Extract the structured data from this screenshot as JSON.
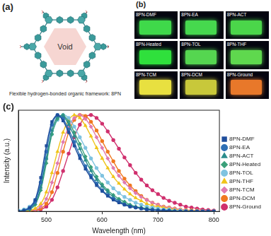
{
  "panel_labels": [
    "(a)",
    "(b)",
    "(c)"
  ],
  "diagram": {
    "center_label": "Void",
    "caption": "Flexible hydrogen-bonded organic framework: 8PN"
  },
  "photos": [
    {
      "label": "8PN-DMF",
      "color": "#3fd94a"
    },
    {
      "label": "8PN-EA",
      "color": "#46d84e"
    },
    {
      "label": "8PN-ACT",
      "color": "#4bd64a"
    },
    {
      "label": "8PN-Heated",
      "color": "#2fe03c"
    },
    {
      "label": "8PN-TOL",
      "color": "#55d650"
    },
    {
      "label": "8PN-THF",
      "color": "#5fd84e"
    },
    {
      "label": "8PN-TCM",
      "color": "#e8e040"
    },
    {
      "label": "8PN-DCM",
      "color": "#c8c83a"
    },
    {
      "label": "8PN-Ground",
      "color": "#e8782a"
    }
  ],
  "chart_data": {
    "type": "line",
    "x_label": "Wavelength (nm)",
    "y_label": "Intensity (a.u.)",
    "x": [
      450,
      460,
      470,
      480,
      490,
      500,
      510,
      520,
      530,
      540,
      550,
      560,
      570,
      580,
      590,
      600,
      610,
      620,
      630,
      640,
      650,
      660,
      670,
      680,
      690,
      700,
      710,
      720,
      730,
      740,
      750,
      760,
      770,
      780,
      790,
      800
    ],
    "xlim": [
      450,
      810
    ],
    "xticks": [
      500,
      600,
      700,
      800
    ],
    "ylim": [
      0,
      1.05
    ],
    "tick_labels": "x",
    "grid": false,
    "legend": "right",
    "series": [
      {
        "name": "8PN-DMF",
        "color": "#1f4e9c",
        "marker": "square",
        "values": [
          0,
          0.01,
          0.04,
          0.12,
          0.35,
          0.68,
          0.93,
          1.0,
          0.94,
          0.82,
          0.68,
          0.55,
          0.44,
          0.35,
          0.27,
          0.21,
          0.16,
          0.12,
          0.09,
          0.07,
          0.05,
          0.04,
          0.03,
          0.02,
          0.015,
          0.01,
          0.01,
          0.005,
          0,
          0,
          0,
          0,
          0,
          0,
          0,
          0
        ]
      },
      {
        "name": "8PN-EA",
        "color": "#2e6fb5",
        "marker": "circle",
        "values": [
          0,
          0.01,
          0.03,
          0.1,
          0.3,
          0.62,
          0.9,
          1.0,
          0.96,
          0.85,
          0.72,
          0.58,
          0.47,
          0.37,
          0.29,
          0.22,
          0.17,
          0.13,
          0.1,
          0.07,
          0.05,
          0.04,
          0.03,
          0.02,
          0.015,
          0.01,
          0.01,
          0.005,
          0,
          0,
          0,
          0,
          0,
          0,
          0,
          0
        ]
      },
      {
        "name": "8PN-ACT",
        "color": "#2a8c8c",
        "marker": "triangle",
        "values": [
          0,
          0.01,
          0.03,
          0.08,
          0.25,
          0.55,
          0.84,
          0.98,
          0.99,
          0.9,
          0.78,
          0.65,
          0.53,
          0.42,
          0.33,
          0.26,
          0.2,
          0.15,
          0.11,
          0.08,
          0.06,
          0.045,
          0.035,
          0.025,
          0.02,
          0.015,
          0.01,
          0.01,
          0.005,
          0,
          0,
          0,
          0,
          0,
          0,
          0
        ]
      },
      {
        "name": "8PN-Heated",
        "color": "#3aa07a",
        "marker": "diamond",
        "values": [
          0,
          0.01,
          0.02,
          0.07,
          0.22,
          0.5,
          0.8,
          0.96,
          1.0,
          0.93,
          0.82,
          0.7,
          0.57,
          0.46,
          0.36,
          0.28,
          0.22,
          0.17,
          0.13,
          0.1,
          0.07,
          0.05,
          0.04,
          0.03,
          0.02,
          0.015,
          0.01,
          0.01,
          0.005,
          0,
          0,
          0,
          0,
          0,
          0,
          0
        ]
      },
      {
        "name": "8PN-TOL",
        "color": "#7fc3e0",
        "marker": "circle",
        "values": [
          0.01,
          0.02,
          0.05,
          0.12,
          0.3,
          0.55,
          0.8,
          0.95,
          1.0,
          0.97,
          0.88,
          0.77,
          0.66,
          0.55,
          0.45,
          0.37,
          0.3,
          0.24,
          0.19,
          0.15,
          0.12,
          0.09,
          0.07,
          0.05,
          0.04,
          0.03,
          0.02,
          0.02,
          0.01,
          0.01,
          0.005,
          0,
          0,
          0,
          0,
          0
        ]
      },
      {
        "name": "8PN-THF",
        "color": "#f0c419",
        "marker": "triangle",
        "values": [
          0,
          0,
          0.01,
          0.03,
          0.08,
          0.2,
          0.4,
          0.62,
          0.82,
          0.95,
          1.0,
          0.97,
          0.89,
          0.78,
          0.66,
          0.55,
          0.45,
          0.36,
          0.29,
          0.23,
          0.18,
          0.14,
          0.11,
          0.08,
          0.06,
          0.05,
          0.04,
          0.03,
          0.02,
          0.015,
          0.01,
          0.01,
          0.005,
          0,
          0,
          0
        ]
      },
      {
        "name": "8PN-TCM",
        "color": "#e07ab0",
        "marker": "diamond",
        "values": [
          0,
          0,
          0.01,
          0.02,
          0.05,
          0.13,
          0.3,
          0.5,
          0.72,
          0.88,
          0.97,
          1.0,
          0.96,
          0.88,
          0.77,
          0.66,
          0.55,
          0.45,
          0.37,
          0.3,
          0.24,
          0.19,
          0.15,
          0.12,
          0.09,
          0.07,
          0.05,
          0.04,
          0.03,
          0.02,
          0.015,
          0.01,
          0.01,
          0.005,
          0,
          0
        ]
      },
      {
        "name": "8PN-DCM",
        "color": "#f07820",
        "marker": "circle",
        "values": [
          0,
          0,
          0,
          0.01,
          0.03,
          0.08,
          0.2,
          0.4,
          0.62,
          0.82,
          0.95,
          1.0,
          0.99,
          0.93,
          0.84,
          0.73,
          0.62,
          0.52,
          0.42,
          0.34,
          0.27,
          0.21,
          0.16,
          0.12,
          0.09,
          0.07,
          0.05,
          0.04,
          0.03,
          0.02,
          0.015,
          0.01,
          0.01,
          0.005,
          0,
          0
        ]
      },
      {
        "name": "8PN-Ground",
        "color": "#d0306e",
        "marker": "circle",
        "values": [
          0,
          0,
          0,
          0.01,
          0.02,
          0.05,
          0.12,
          0.25,
          0.42,
          0.6,
          0.77,
          0.9,
          0.98,
          1.0,
          0.97,
          0.91,
          0.83,
          0.74,
          0.65,
          0.56,
          0.48,
          0.4,
          0.33,
          0.27,
          0.22,
          0.18,
          0.14,
          0.11,
          0.09,
          0.07,
          0.05,
          0.04,
          0.03,
          0.02,
          0.015,
          0.01
        ]
      }
    ]
  }
}
